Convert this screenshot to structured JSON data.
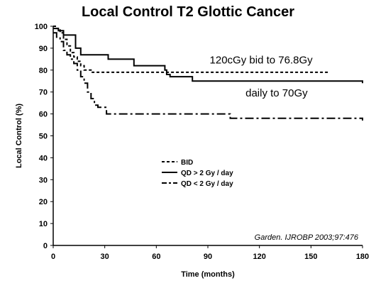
{
  "chart_data": {
    "type": "line",
    "title": "Local Control T2 Glottic Cancer",
    "xlabel": "Time (months)",
    "ylabel": "Local Control (%)",
    "xlim": [
      0,
      180
    ],
    "ylim": [
      0,
      100
    ],
    "xticks": [
      0,
      30,
      60,
      90,
      120,
      150,
      180
    ],
    "yticks": [
      0,
      10,
      20,
      30,
      40,
      50,
      60,
      70,
      80,
      90,
      100
    ],
    "step": true,
    "grid": false,
    "legend_position": "center",
    "series": [
      {
        "name": "BID",
        "dash": "short-dash",
        "color": "#000000",
        "points": [
          [
            0,
            100
          ],
          [
            2,
            99
          ],
          [
            4,
            97
          ],
          [
            6,
            94
          ],
          [
            8,
            91
          ],
          [
            10,
            88
          ],
          [
            12,
            86
          ],
          [
            14,
            84
          ],
          [
            16,
            82
          ],
          [
            18,
            80
          ],
          [
            20,
            80
          ],
          [
            22,
            79
          ],
          [
            25,
            79
          ],
          [
            30,
            79
          ],
          [
            60,
            79
          ],
          [
            80,
            79
          ],
          [
            100,
            79
          ],
          [
            120,
            79
          ],
          [
            140,
            79
          ],
          [
            160,
            79
          ]
        ]
      },
      {
        "name": "QD > 2 Gy / day",
        "dash": "solid",
        "color": "#000000",
        "points": [
          [
            0,
            99
          ],
          [
            3,
            98
          ],
          [
            6,
            96
          ],
          [
            10,
            96
          ],
          [
            13,
            96
          ],
          [
            13,
            90
          ],
          [
            16,
            87
          ],
          [
            30,
            87
          ],
          [
            32,
            85
          ],
          [
            45,
            85
          ],
          [
            47,
            82
          ],
          [
            62,
            82
          ],
          [
            65,
            80
          ],
          [
            66,
            78
          ],
          [
            68,
            77
          ],
          [
            80,
            77
          ],
          [
            81,
            75
          ],
          [
            180,
            74
          ]
        ]
      },
      {
        "name": "QD < 2 Gy / day",
        "dash": "dash-dot",
        "color": "#000000",
        "points": [
          [
            0,
            97
          ],
          [
            2,
            95
          ],
          [
            4,
            93
          ],
          [
            6,
            89
          ],
          [
            8,
            87
          ],
          [
            10,
            85
          ],
          [
            12,
            83
          ],
          [
            14,
            80
          ],
          [
            16,
            77
          ],
          [
            18,
            74
          ],
          [
            20,
            70
          ],
          [
            22,
            67
          ],
          [
            24,
            64
          ],
          [
            26,
            63
          ],
          [
            30,
            63
          ],
          [
            31,
            60
          ],
          [
            50,
            60
          ],
          [
            60,
            60
          ],
          [
            100,
            60
          ],
          [
            103,
            58
          ],
          [
            140,
            58
          ],
          [
            180,
            57
          ]
        ]
      }
    ],
    "annotations": [
      {
        "text": "120cGy bid to 76.8Gy",
        "x": 121,
        "y": 83
      },
      {
        "text": "daily to 70Gy",
        "x": 130,
        "y": 68
      }
    ],
    "legend": [
      "BID",
      "QD > 2 Gy / day",
      "QD < 2 Gy / day"
    ],
    "citation": "Garden. IJROBP 2003;97:476"
  }
}
